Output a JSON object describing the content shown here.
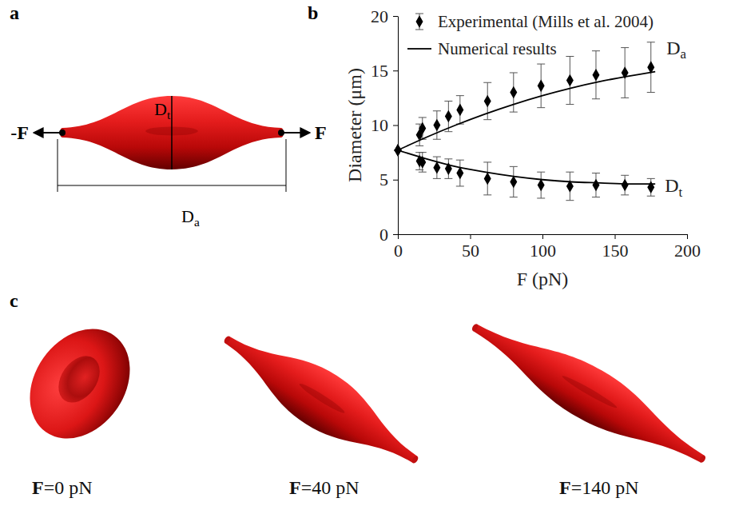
{
  "chart_data": {
    "type": "scatter",
    "x_label": "F (pN)",
    "y_label": "Diameter (μm)",
    "xlim": [
      0,
      200
    ],
    "xticks": [
      0,
      50,
      100,
      150,
      200
    ],
    "ylim": [
      0,
      20
    ],
    "yticks": [
      0,
      5,
      10,
      15,
      20
    ],
    "legend": "upper left",
    "series": [
      {
        "name": "Experimental (Mills et al. 2004)",
        "type": "scatter",
        "marker": "diamond",
        "color": "#000000",
        "curves": [
          {
            "x": [
              0,
              15,
              17,
              27,
              35,
              43,
              62,
              80,
              99,
              119,
              137,
              157,
              175
            ],
            "values": [
              7.7,
              9.1,
              9.7,
              10.0,
              10.8,
              11.4,
              12.2,
              13.0,
              13.6,
              14.1,
              14.6,
              14.8,
              15.3
            ],
            "errors": [
              0,
              1.0,
              1.0,
              1.3,
              1.4,
              1.3,
              1.7,
              1.8,
              2.0,
              2.2,
              2.2,
              2.3,
              2.3
            ]
          },
          {
            "x": [
              0,
              15,
              17,
              27,
              35,
              43,
              62,
              80,
              99,
              119,
              137,
              157,
              175
            ],
            "values": [
              7.7,
              6.7,
              6.6,
              6.1,
              6.0,
              5.6,
              5.1,
              4.8,
              4.5,
              4.4,
              4.5,
              4.5,
              4.3
            ],
            "errors": [
              0,
              0.8,
              0.9,
              1.0,
              0.9,
              1.2,
              1.5,
              1.4,
              1.2,
              1.3,
              1.1,
              0.9,
              0.8
            ]
          }
        ]
      },
      {
        "name": "Numerical results",
        "type": "line",
        "line_style": "solid",
        "color": "#000000",
        "curves": [
          {
            "x": [
              0,
              20,
              40,
              60,
              80,
              100,
              120,
              140,
              160,
              178
            ],
            "values": [
              7.7,
              8.9,
              10.0,
              11.0,
              11.9,
              12.7,
              13.4,
              14.0,
              14.5,
              14.9
            ]
          },
          {
            "x": [
              0,
              20,
              40,
              60,
              80,
              100,
              120,
              140,
              160,
              178
            ],
            "values": [
              7.7,
              6.9,
              6.2,
              5.7,
              5.3,
              5.0,
              4.8,
              4.7,
              4.6,
              4.6
            ]
          }
        ]
      }
    ],
    "annotations": [
      {
        "text": "Da"
      },
      {
        "text": "Dt"
      }
    ]
  },
  "panel_letters": [
    "a",
    "b",
    "c"
  ],
  "panel_a": {
    "force_labels": [
      "-F",
      "F"
    ],
    "dimension_labels": [
      "Dt",
      "Da"
    ]
  },
  "panel_c": {
    "labels": [
      "F=0 pN",
      "F=40 pN",
      "F=140 pN"
    ]
  }
}
